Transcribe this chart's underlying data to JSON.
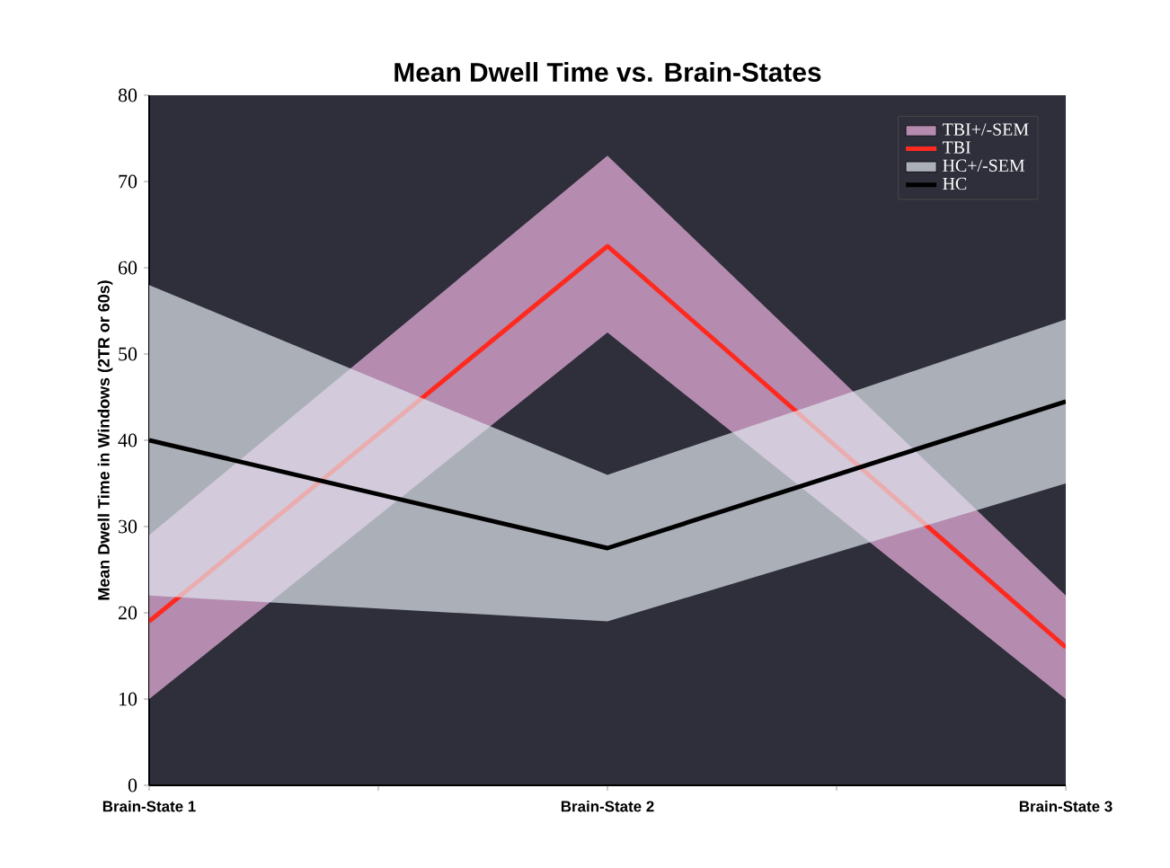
{
  "chart_data": {
    "type": "line",
    "title": "Mean Dwell Time vs. Brain-States",
    "ylabel": "Mean Dwell Time in Windows (2TR or 60s)",
    "categories": [
      "Brain-State 1",
      "Brain-State 2",
      "Brain-State 3"
    ],
    "series": [
      {
        "name": "TBI+/-SEM",
        "type": "area",
        "color": "#f0b4e2",
        "values": [
          null,
          null,
          null
        ],
        "lower": [
          10,
          52.5,
          10
        ],
        "upper": [
          29,
          73,
          22
        ]
      },
      {
        "name": "TBI",
        "type": "line",
        "color": "#ff2a1f",
        "values": [
          19,
          62.5,
          16
        ]
      },
      {
        "name": "HC+/-SEM",
        "type": "area",
        "color": "#dfe6ee",
        "values": [
          null,
          null,
          null
        ],
        "lower": [
          22,
          19,
          35
        ],
        "upper": [
          58,
          36,
          54
        ]
      },
      {
        "name": "HC",
        "type": "line",
        "color": "#000000",
        "values": [
          40,
          27.5,
          44.5
        ]
      }
    ],
    "ylim": [
      0,
      80
    ],
    "yticks": [
      0,
      10,
      20,
      30,
      40,
      50,
      60,
      70,
      80
    ],
    "legend": "top right",
    "grid": false
  }
}
